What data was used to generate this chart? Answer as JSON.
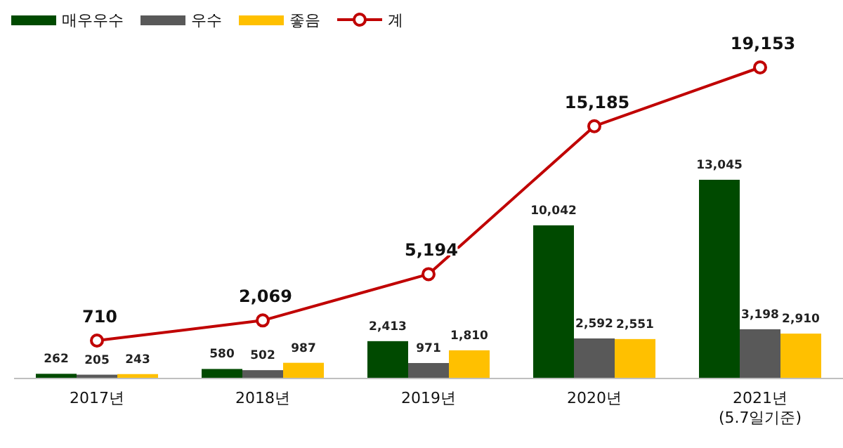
{
  "chart_data": {
    "type": "bar",
    "categories": [
      "2017년",
      "2018년",
      "2019년",
      "2020년",
      "2021년\n(5.7일기준)"
    ],
    "series": [
      {
        "name": "매우우수",
        "color": "#004a00",
        "values": [
          262,
          580,
          2413,
          10042,
          13045
        ],
        "value_labels": [
          "262",
          "580",
          "2,413",
          "10,042",
          "13,045"
        ]
      },
      {
        "name": "우수",
        "color": "#595959",
        "values": [
          205,
          502,
          971,
          2592,
          3198
        ],
        "value_labels": [
          "205",
          "502",
          "971",
          "2,592",
          "3,198"
        ]
      },
      {
        "name": "좋음",
        "color": "#ffc000",
        "values": [
          243,
          987,
          1810,
          2551,
          2910
        ],
        "value_labels": [
          "243",
          "987",
          "1,810",
          "2,551",
          "2,910"
        ]
      },
      {
        "name": "계",
        "type": "line",
        "axis": "y2",
        "color": "#c00000",
        "marker": "circle",
        "values": [
          710,
          2069,
          5194,
          15185,
          19153
        ],
        "value_labels": [
          "710",
          "2,069",
          "5,194",
          "15,185",
          "19,153"
        ]
      }
    ],
    "legend": "top left"
  }
}
